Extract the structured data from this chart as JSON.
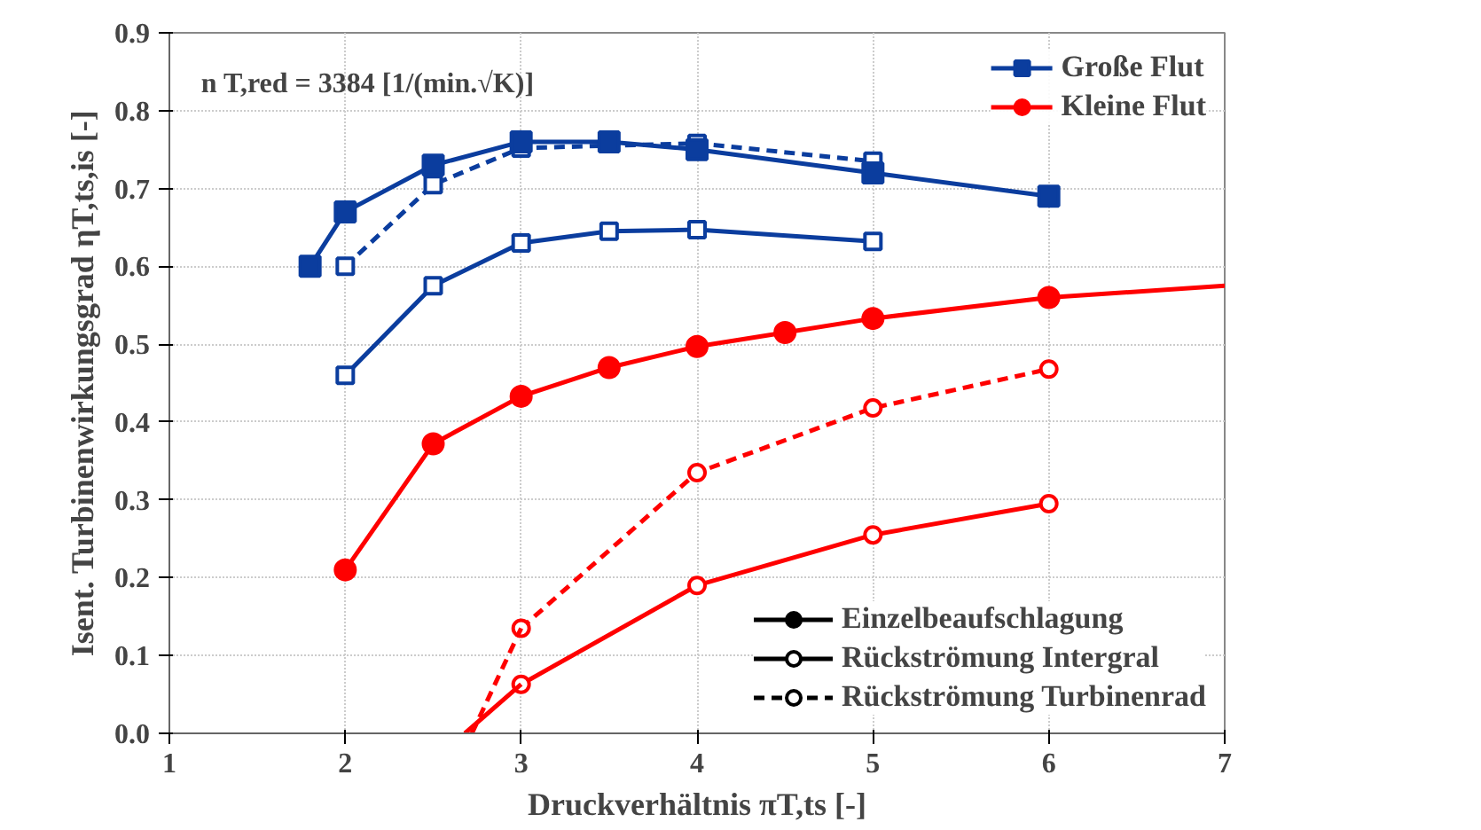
{
  "chart_data": {
    "type": "line",
    "xlabel": "Druckverhältnis πT,ts [-]",
    "ylabel": "Isent. Turbinenwirkungsgrad ηT,ts,is [-]",
    "xlim": [
      1,
      7
    ],
    "ylim": [
      0,
      0.9
    ],
    "xticks": [
      1,
      2,
      3,
      4,
      5,
      6,
      7
    ],
    "yticks": [
      {
        "value": 0,
        "label": "0.0"
      },
      0.1,
      0.2,
      0.3,
      0.4,
      0.5,
      0.6,
      0.7,
      0.8,
      0.9
    ],
    "grid": true,
    "legend": "right",
    "annotations": [
      "n T,red = 3384 [1/(min.√K)]"
    ],
    "series": [
      {
        "name": "Große Flut",
        "color": "#0b3d9e",
        "marker": "square",
        "line_style": "solid",
        "x": [
          1.8,
          2,
          2.5,
          3,
          3.5,
          4,
          5,
          6
        ],
        "values": [
          0.6,
          0.67,
          0.73,
          0.76,
          0.76,
          0.75,
          0.72,
          0.69
        ]
      },
      {
        "color": "#0b3d9e",
        "marker": "square_open",
        "line_style": "solid",
        "x": [
          2,
          2.5,
          3,
          3.5,
          4,
          5
        ],
        "values": [
          0.46,
          0.575,
          0.63,
          0.645,
          0.647,
          0.632
        ]
      },
      {
        "color": "#0b3d9e",
        "marker": "square_open",
        "line_style": "dashed",
        "x": [
          2,
          2.5,
          3,
          4,
          5
        ],
        "values": [
          0.6,
          0.705,
          0.752,
          0.758,
          0.735
        ]
      },
      {
        "name": "Kleine Flut",
        "color": "#ff0000",
        "marker": "circle",
        "line_style": "solid",
        "x": [
          2,
          2.5,
          3,
          3.5,
          4,
          4.5,
          5,
          6
        ],
        "values": [
          0.21,
          0.372,
          0.433,
          0.47,
          0.497,
          0.515,
          0.533,
          0.56
        ]
      },
      {
        "color": "#ff0000",
        "marker": "none",
        "line_style": "solid",
        "x": [
          6,
          7
        ],
        "values": [
          0.56,
          0.575
        ]
      },
      {
        "color": "#ff0000",
        "marker": "circle_open",
        "line_style": "solid",
        "x": [
          3,
          4,
          5,
          6
        ],
        "values": [
          0.063,
          0.19,
          0.255,
          0.295
        ]
      },
      {
        "color": "#ff0000",
        "marker": "none",
        "line_style": "solid",
        "x": [
          2.68,
          3
        ],
        "values": [
          0,
          0.063
        ]
      },
      {
        "color": "#ff0000",
        "marker": "circle_open",
        "line_style": "dashed",
        "x": [
          3,
          4,
          5,
          6
        ],
        "values": [
          0.135,
          0.335,
          0.418,
          0.468
        ]
      },
      {
        "color": "#ff0000",
        "marker": "none",
        "line_style": "dashed",
        "x": [
          2.72,
          3
        ],
        "values": [
          0,
          0.135
        ]
      },
      {
        "name": "Einzelbeaufschlagung",
        "color": "#000000",
        "marker": "circle",
        "line_style": "solid"
      },
      {
        "name": "Rückströmung Intergral",
        "color": "#000000",
        "marker": "circle_open",
        "line_style": "solid"
      },
      {
        "name": "Rückströmung Turbinenrad",
        "color": "#000000",
        "marker": "circle_open",
        "line_style": "dashed"
      }
    ]
  }
}
